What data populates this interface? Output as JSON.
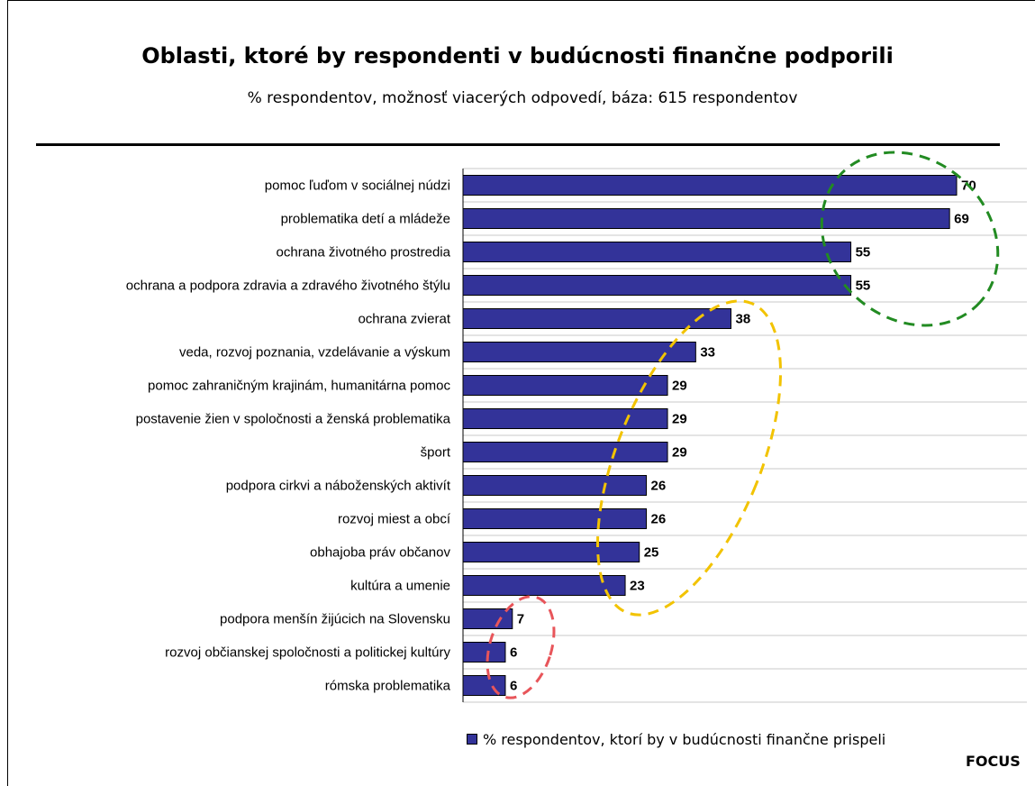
{
  "header": {
    "title": "Oblasti, ktoré by respondenti v budúcnosti finančne podporili",
    "subtitle": "% respondentov, možnosť viacerých odpovedí, báza: 615 respondentov"
  },
  "brand": "FOCUS",
  "colors": {
    "bar": "#333399",
    "group_high": "#228B22",
    "group_mid": "#F2C300",
    "group_low": "#E8555A"
  },
  "chart_data": {
    "type": "bar",
    "orientation": "horizontal",
    "categories": [
      "pomoc ľuďom v sociálnej núdzi",
      "problematika detí a mládeže",
      "ochrana životného prostredia",
      "ochrana a podpora zdravia a zdravého životného štýlu",
      "ochrana zvierat",
      "veda, rozvoj poznania, vzdelávanie a výskum",
      "pomoc zahraničným krajinám, humanitárna pomoc",
      "postavenie žien v spoločnosti a ženská problematika",
      "šport",
      "podpora cirkvi a náboženských aktivít",
      "rozvoj miest a obcí",
      "obhajoba práv občanov",
      "kultúra a umenie",
      "podpora menšín žijúcich na Slovensku",
      "rozvoj občianskej spoločnosti a politickej kultúry",
      "rómska problematika"
    ],
    "series": [
      {
        "name": "% respondentov, ktorí by v budúcnosti finančne prispeli",
        "values": [
          70,
          69,
          55,
          55,
          38,
          33,
          29,
          29,
          29,
          26,
          26,
          25,
          23,
          7,
          6,
          6
        ]
      }
    ],
    "xlim": [
      0,
      80
    ],
    "grid": true,
    "legend": "bottom",
    "data_labels": true,
    "highlight_groups": [
      {
        "color": "green",
        "categories_from": 0,
        "categories_to": 3
      },
      {
        "color": "yellow",
        "categories_from": 4,
        "categories_to": 12
      },
      {
        "color": "red",
        "categories_from": 13,
        "categories_to": 15
      }
    ]
  }
}
